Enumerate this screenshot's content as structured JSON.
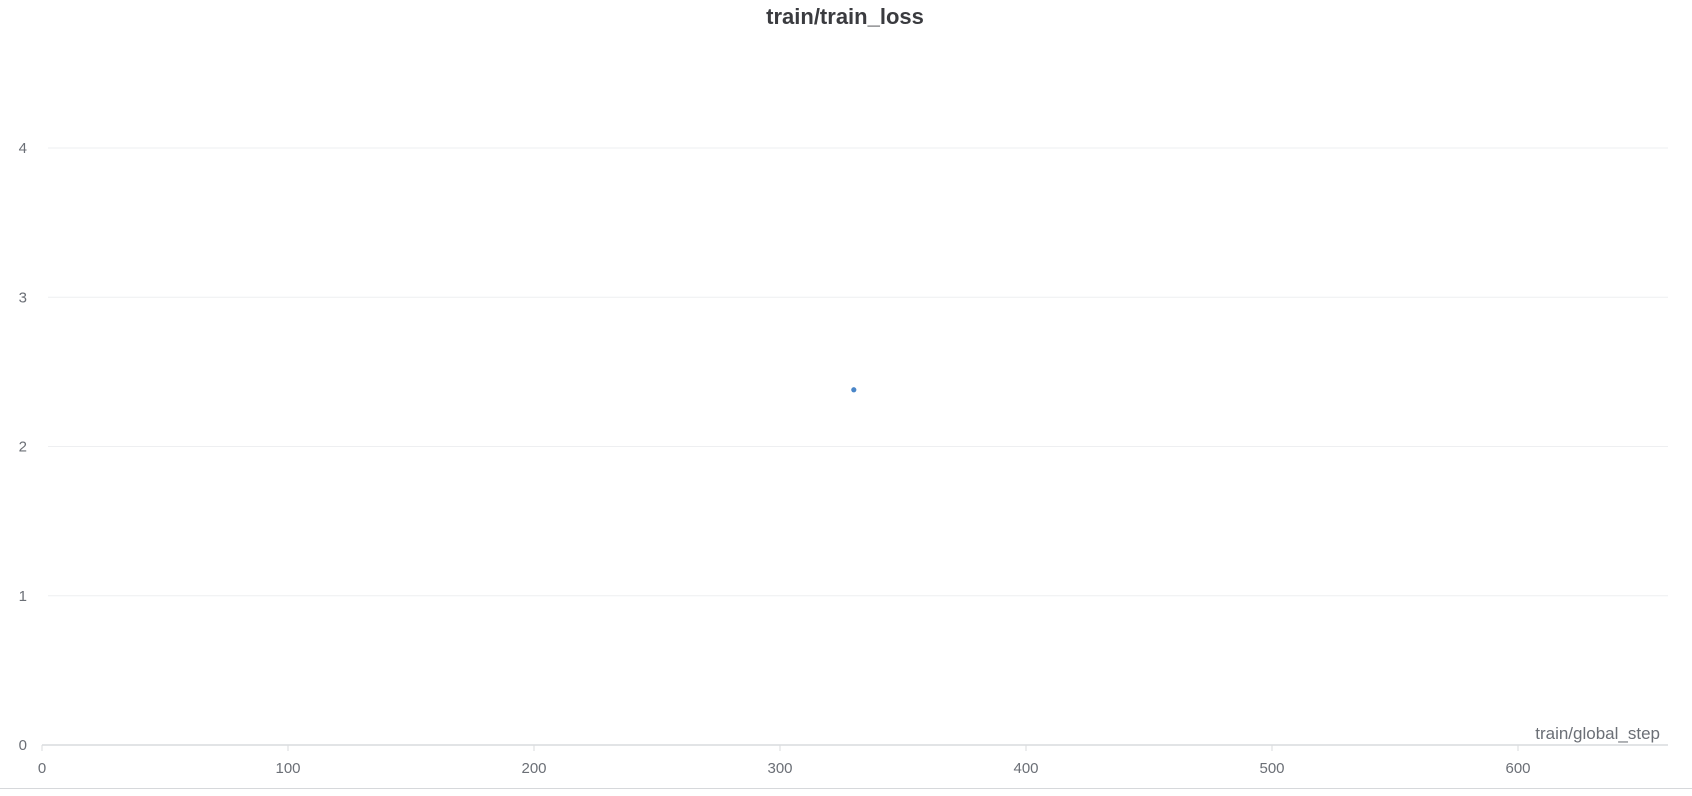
{
  "chart_data": {
    "type": "scatter",
    "title": "train/train_loss",
    "xlabel": "train/global_step",
    "ylabel": "",
    "xlim": [
      0,
      660
    ],
    "ylim": [
      0,
      4.4
    ],
    "x_ticks": [
      0,
      100,
      200,
      300,
      400,
      500,
      600
    ],
    "y_ticks": [
      0,
      1,
      2,
      3,
      4
    ],
    "grid": true,
    "legend": "none",
    "series": [
      {
        "color": "#4a86c8",
        "points": [
          {
            "x": 330,
            "y": 2.38
          }
        ]
      }
    ]
  }
}
